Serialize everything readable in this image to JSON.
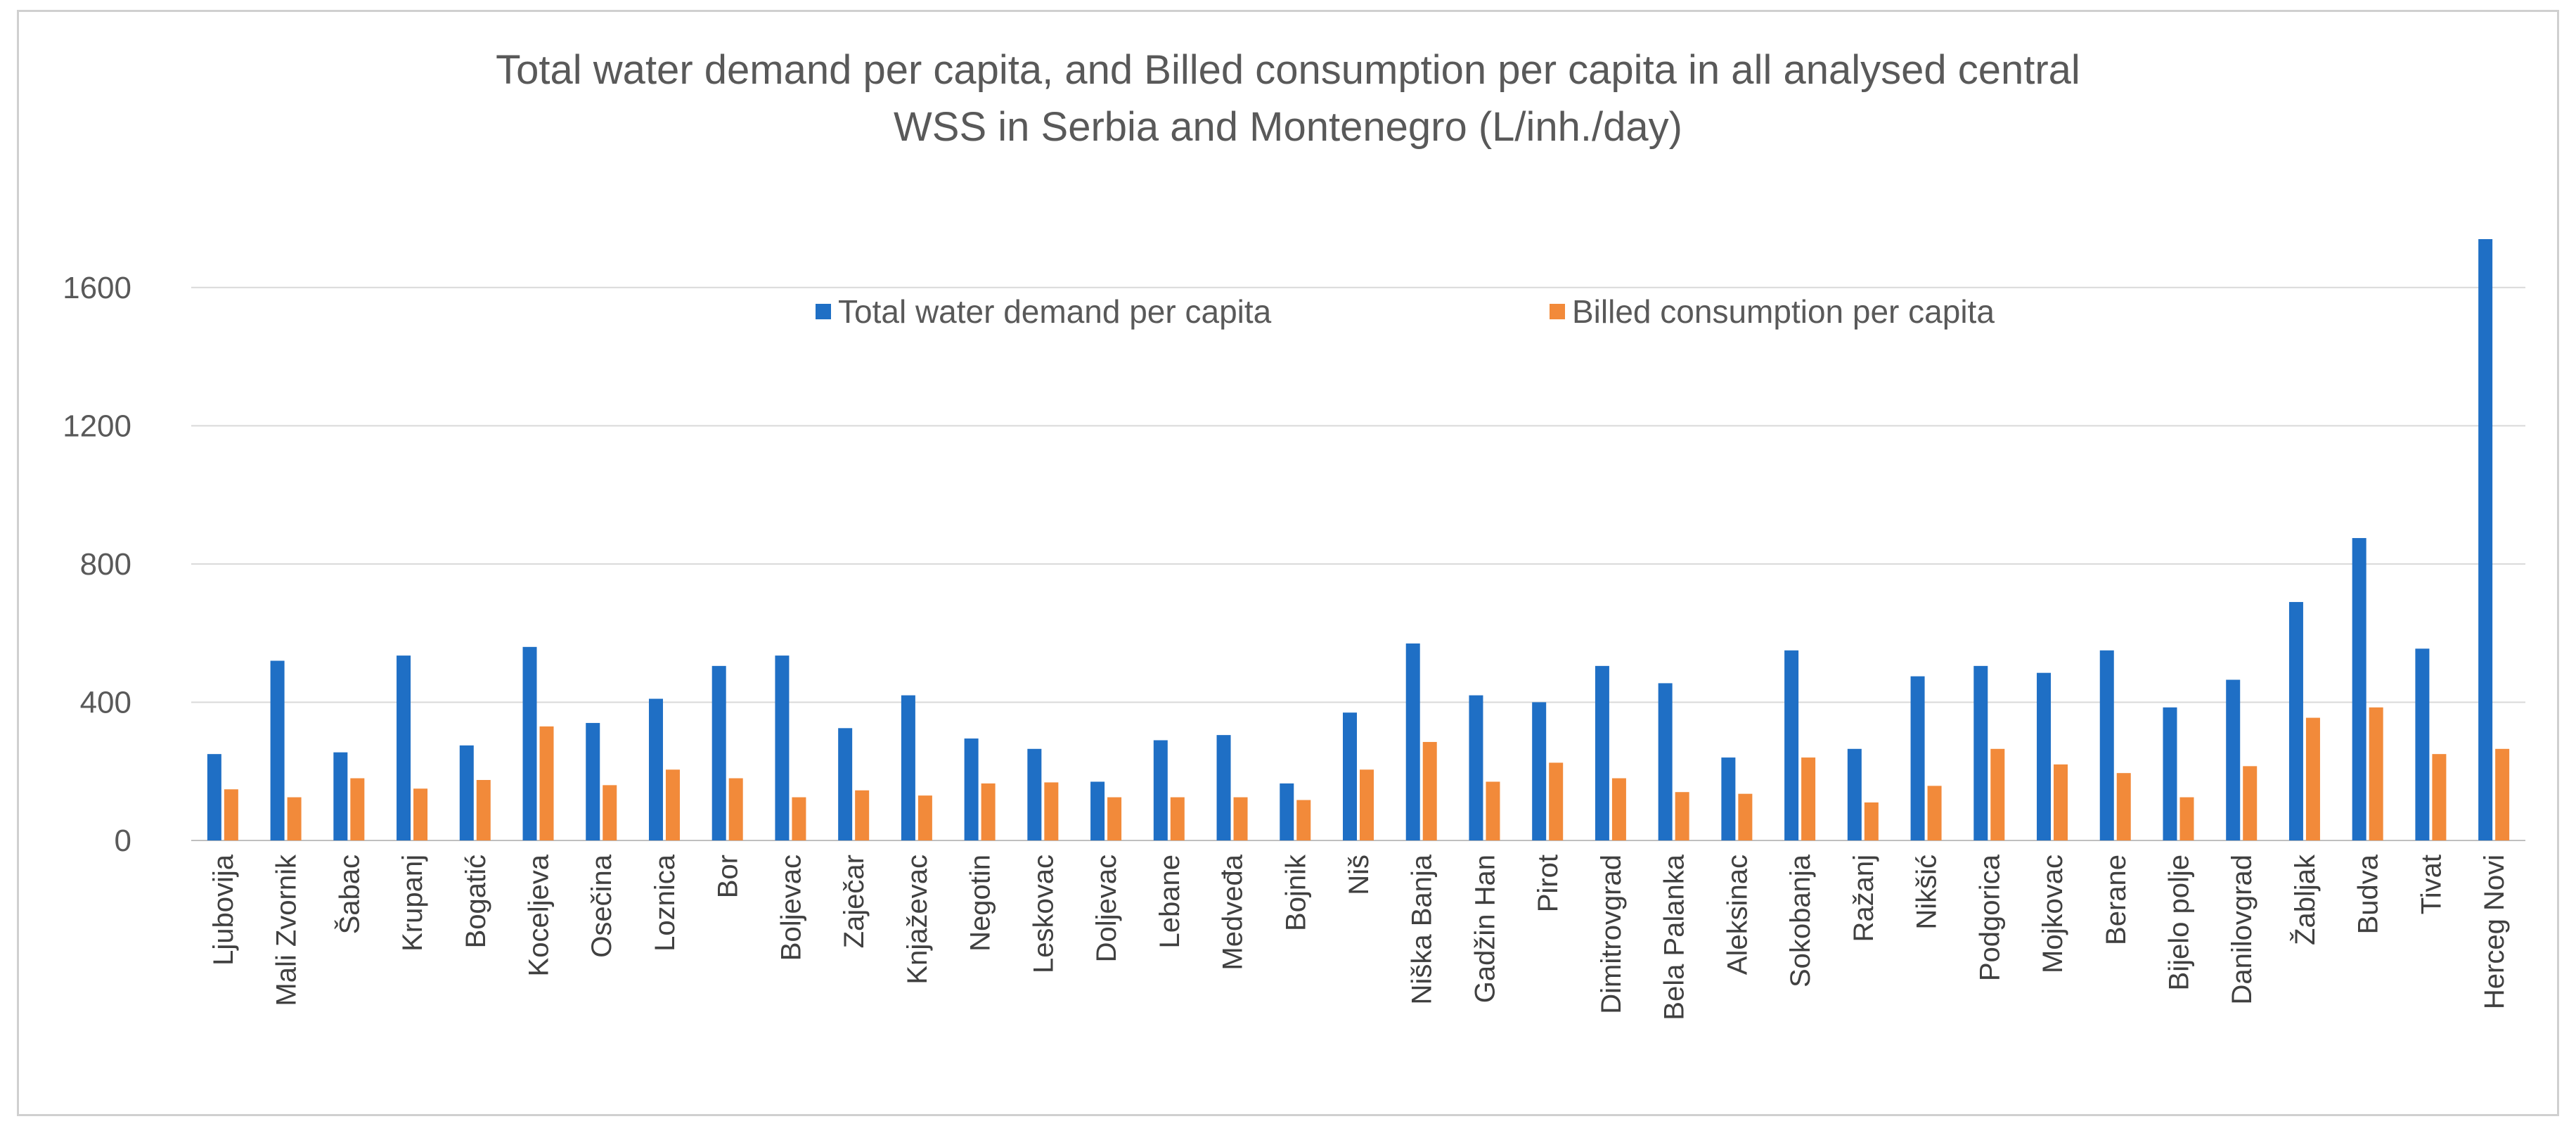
{
  "chart_data": {
    "type": "bar",
    "title": "Total water demand per capita, and Billed consumption per capita in all analysed central WSS in Serbia and Montenegro (L/inh./day)",
    "title_lines": [
      "Total water demand per capita, and Billed consumption per capita in all analysed central",
      "WSS in Serbia and Montenegro (L/inh./day)"
    ],
    "xlabel": "",
    "ylabel": "",
    "ylim": [
      0,
      1600
    ],
    "yticks": [
      0,
      400,
      800,
      1200,
      1600
    ],
    "grid": true,
    "legend_position": "top-center",
    "categories": [
      "Ljubovija",
      "Mali Zvornik",
      "Šabac",
      "Krupanj",
      "Bogatić",
      "Koceljeva",
      "Osečina",
      "Loznica",
      "Bor",
      "Boljevac",
      "Zaječar",
      "Knjaževac",
      "Negotin",
      "Leskovac",
      "Doljevac",
      "Lebane",
      "Medveđa",
      "Bojnik",
      "Niš",
      "Niška Banja",
      "Gadžin Han",
      "Pirot",
      "Dimitrovgrad",
      "Bela Palanka",
      "Aleksinac",
      "Sokobanja",
      "Ražanj",
      "Nikšić",
      "Podgorica",
      "Mojkovac",
      "Berane",
      "Bijelo polje",
      "Danilovgrad",
      "Žabljak",
      "Budva",
      "Tivat",
      "Herceg Novi"
    ],
    "series": [
      {
        "name": "Total water demand per capita",
        "color": "#1f6fc5",
        "values": [
          250,
          520,
          255,
          535,
          275,
          560,
          340,
          410,
          505,
          535,
          325,
          420,
          295,
          265,
          170,
          290,
          305,
          165,
          370,
          570,
          420,
          400,
          505,
          455,
          240,
          550,
          265,
          475,
          505,
          485,
          550,
          385,
          465,
          690,
          875,
          555,
          1740
        ]
      },
      {
        "name": "Billed consumption per capita",
        "color": "#f28a3a",
        "values": [
          148,
          125,
          180,
          150,
          175,
          330,
          160,
          205,
          180,
          125,
          145,
          130,
          165,
          168,
          125,
          125,
          125,
          117,
          205,
          285,
          170,
          225,
          180,
          140,
          135,
          240,
          110,
          158,
          265,
          220,
          195,
          125,
          215,
          355,
          385,
          250,
          265
        ]
      }
    ]
  }
}
